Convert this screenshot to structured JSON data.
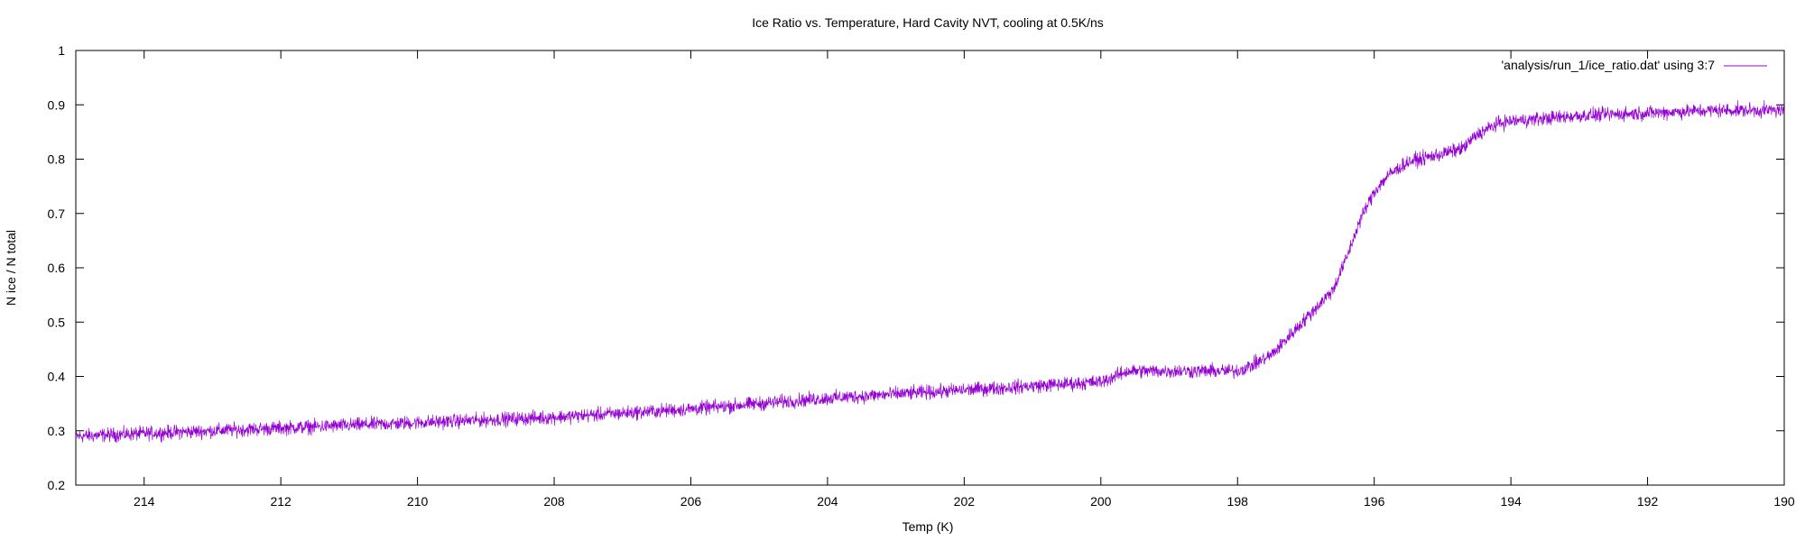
{
  "chart_data": {
    "type": "line",
    "title": "Ice Ratio vs. Temperature, Hard Cavity NVT, cooling at 0.5K/ns",
    "xlabel": "Temp (K)",
    "ylabel": "N ice / N total",
    "xlim": [
      215,
      190
    ],
    "ylim": [
      0.2,
      1.0
    ],
    "x_reversed": true,
    "x_ticks": [
      "214",
      "212",
      "210",
      "208",
      "206",
      "204",
      "202",
      "200",
      "198",
      "196",
      "194",
      "192",
      "190"
    ],
    "y_ticks": [
      "0.2",
      "0.3",
      "0.4",
      "0.5",
      "0.6",
      "0.7",
      "0.8",
      "0.9",
      "1"
    ],
    "grid": false,
    "legend_position": "top-right",
    "series": [
      {
        "name": "'analysis/run_1/ice_ratio.dat' using 3:7",
        "color": "#9400d3",
        "trend": {
          "x": [
            215,
            214,
            212,
            210,
            208,
            206,
            204,
            202,
            200,
            199.6,
            198.5,
            198,
            197.8,
            197.5,
            197.2,
            196.9,
            196.6,
            196.4,
            196.2,
            196.0,
            195.8,
            195.5,
            195.0,
            194.7,
            194.5,
            194.2,
            194.0,
            193.5,
            193.0,
            192.0,
            191.0,
            190
          ],
          "y": [
            0.29,
            0.295,
            0.305,
            0.315,
            0.325,
            0.34,
            0.36,
            0.375,
            0.39,
            0.41,
            0.41,
            0.41,
            0.42,
            0.44,
            0.48,
            0.52,
            0.56,
            0.62,
            0.69,
            0.74,
            0.77,
            0.795,
            0.81,
            0.82,
            0.845,
            0.865,
            0.87,
            0.875,
            0.88,
            0.885,
            0.89,
            0.89
          ]
        },
        "noise_amplitude": 0.012
      }
    ]
  }
}
